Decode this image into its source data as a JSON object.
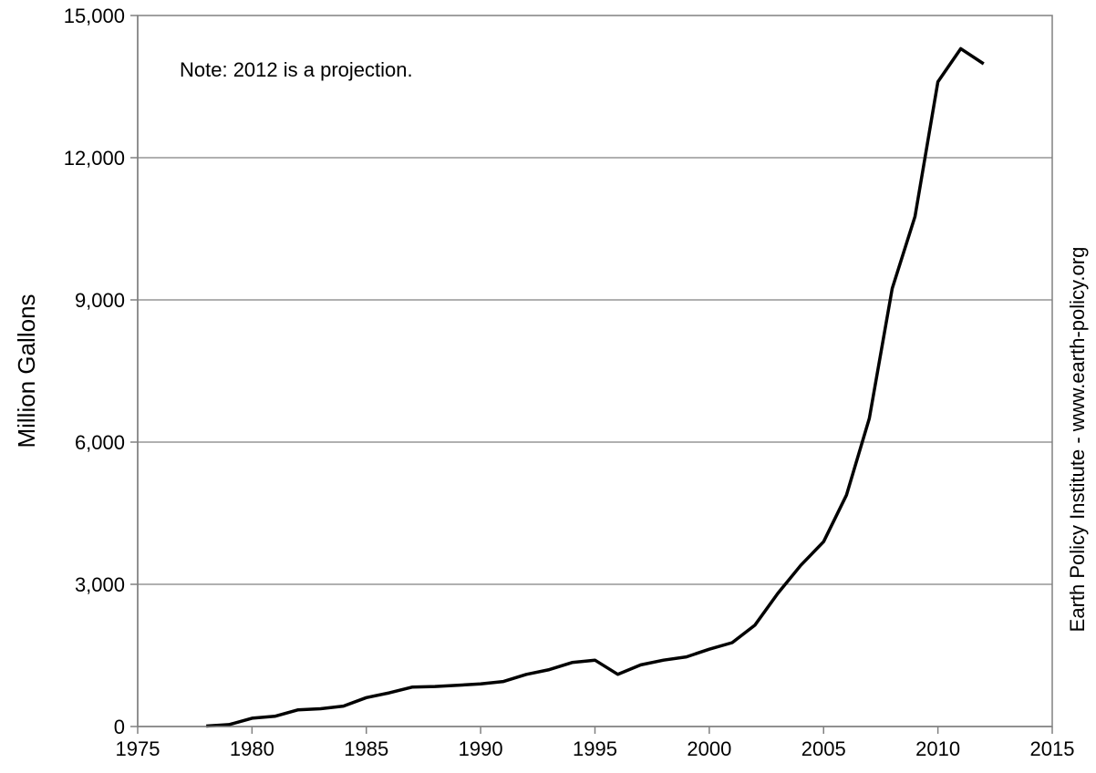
{
  "chart_data": {
    "type": "line",
    "title": "",
    "xlabel": "",
    "ylabel": "Million Gallons",
    "xlim": [
      1975,
      2015
    ],
    "ylim": [
      0,
      15000
    ],
    "x_ticks": [
      1975,
      1980,
      1985,
      1990,
      1995,
      2000,
      2005,
      2010,
      2015
    ],
    "y_ticks": [
      0,
      3000,
      6000,
      9000,
      12000,
      15000
    ],
    "x_tick_labels": [
      "1975",
      "1980",
      "1985",
      "1990",
      "1995",
      "2000",
      "2005",
      "2010",
      "2015"
    ],
    "y_tick_labels": [
      "0",
      "3,000",
      "6,000",
      "9,000",
      "12,000",
      "15,000"
    ],
    "grid": "horizontal",
    "series": [
      {
        "color": "#000000",
        "x": [
          1978,
          1979,
          1980,
          1981,
          1982,
          1983,
          1984,
          1985,
          1986,
          1987,
          1988,
          1989,
          1990,
          1991,
          1992,
          1993,
          1994,
          1995,
          1996,
          1997,
          1998,
          1999,
          2000,
          2001,
          2002,
          2003,
          2004,
          2005,
          2006,
          2007,
          2008,
          2009,
          2010,
          2011,
          2012
        ],
        "values": [
          10,
          40,
          175,
          215,
          350,
          375,
          430,
          610,
          710,
          830,
          845,
          870,
          900,
          950,
          1100,
          1200,
          1350,
          1400,
          1100,
          1300,
          1400,
          1470,
          1630,
          1770,
          2140,
          2810,
          3400,
          3900,
          4880,
          6500,
          9240,
          10760,
          13600,
          14300,
          13980
        ]
      }
    ],
    "annotations": [
      "Note: 2012 is a projection."
    ],
    "credit": "Earth Policy Institute - www.earth-policy.org"
  }
}
